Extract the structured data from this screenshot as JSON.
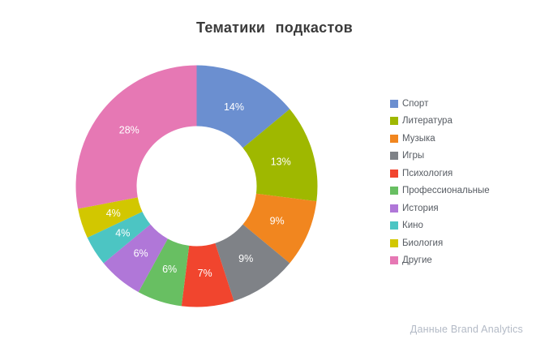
{
  "title": "Тематики подкастов",
  "attribution": "Данные Brand Analytics",
  "chart_data": {
    "type": "pie",
    "subtype": "donut",
    "title": "Тематики подкастов",
    "categories": [
      "Спорт",
      "Литература",
      "Музыка",
      "Игры",
      "Психология",
      "Профессиональные",
      "История",
      "Кино",
      "Биология",
      "Другие"
    ],
    "values": [
      14,
      13,
      9,
      9,
      7,
      6,
      6,
      4,
      4,
      28
    ],
    "unit": "%",
    "slice_labels": [
      "14%",
      "13%",
      "9%",
      "9%",
      "7%",
      "6%",
      "6%",
      "4%",
      "4%",
      "28%"
    ],
    "colors": [
      "#6b8fd0",
      "#9fb800",
      "#f1861f",
      "#7f8287",
      "#f1452e",
      "#68bf62",
      "#b077d8",
      "#4cc5c3",
      "#d2c700",
      "#e678b4"
    ],
    "start_angle_deg": 0,
    "direction": "clockwise",
    "inner_radius_ratio": 0.5,
    "legend_position": "right",
    "label_color": "#ffffff"
  }
}
